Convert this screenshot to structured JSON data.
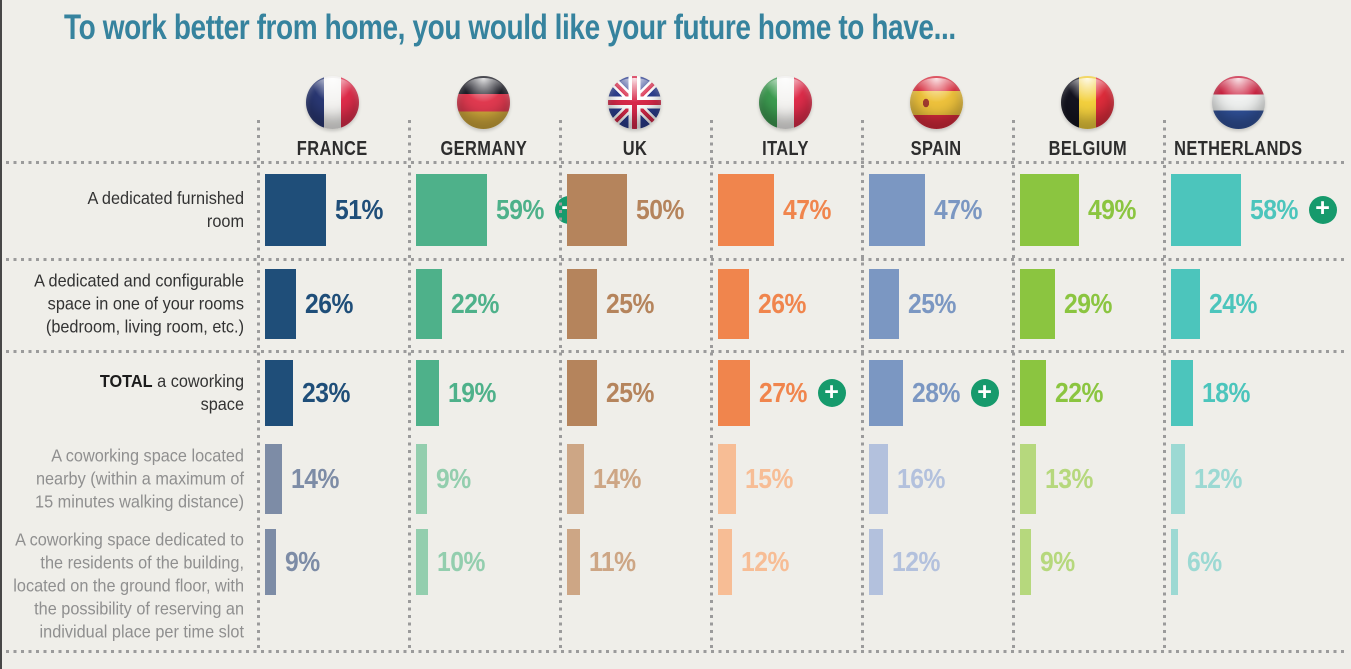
{
  "chart_data": {
    "type": "bar",
    "title": "To work better from home, you would like your future home to have...",
    "unit": "%",
    "value_format": "percent",
    "legend": "none",
    "grid": "dotted-separators",
    "categories": [
      "FRANCE",
      "GERMANY",
      "UK",
      "ITALY",
      "SPAIN",
      "BELGIUM",
      "NETHERLANDS"
    ],
    "series": [
      {
        "name": "A dedicated furnished room",
        "values": [
          51,
          59,
          50,
          47,
          47,
          49,
          58
        ],
        "significant_plus": [
          false,
          true,
          false,
          false,
          false,
          false,
          true
        ]
      },
      {
        "name": "A dedicated and configurable space in one of your rooms (bedroom, living room, etc.)",
        "values": [
          26,
          22,
          25,
          26,
          25,
          29,
          24
        ],
        "significant_plus": [
          false,
          false,
          false,
          false,
          false,
          false,
          false
        ]
      },
      {
        "name": "TOTAL a coworking space",
        "label_bold": "TOTAL",
        "label_rest": " a coworking space",
        "values": [
          23,
          19,
          25,
          27,
          28,
          22,
          18
        ],
        "significant_plus": [
          false,
          false,
          false,
          true,
          true,
          false,
          false
        ]
      },
      {
        "name": "A coworking space located nearby (within a maximum of 15 minutes walking distance)",
        "values": [
          14,
          9,
          14,
          15,
          16,
          13,
          12
        ],
        "significant_plus": [
          false,
          false,
          false,
          false,
          false,
          false,
          false
        ]
      },
      {
        "name": "A coworking space dedicated to the residents of the building, located on the ground floor, with the possibility of reserving an individual place per time slot",
        "values": [
          9,
          10,
          11,
          12,
          12,
          9,
          6
        ],
        "significant_plus": [
          false,
          false,
          false,
          false,
          false,
          false,
          false
        ]
      }
    ]
  },
  "icons": {
    "plus": "+",
    "flag_icons": [
      "france-flag-icon",
      "germany-flag-icon",
      "uk-flag-icon",
      "italy-flag-icon",
      "spain-flag-icon",
      "belgium-flag-icon",
      "netherlands-flag-icon"
    ]
  },
  "style": {
    "background": "#efeee9",
    "title_color": "#36839e",
    "plus_badge_color": "#169a6c",
    "separator_dot_color": "#9b9b9b",
    "label_dark": "#333333",
    "label_gray": "#8f8f8f",
    "flags": [
      "france",
      "germany",
      "uk",
      "italy",
      "spain",
      "belgium",
      "netherlands"
    ],
    "country_colors": [
      {
        "strong": "#1f4e79",
        "light": "#7d8ca6"
      },
      {
        "strong": "#4eb18a",
        "light": "#93ceae"
      },
      {
        "strong": "#b5845c",
        "light": "#cda685"
      },
      {
        "strong": "#f0854d",
        "light": "#f7bd95"
      },
      {
        "strong": "#7b97c2",
        "light": "#b3c1dd"
      },
      {
        "strong": "#8bc540",
        "light": "#b6d87d"
      },
      {
        "strong": "#4cc5bc",
        "light": "#9cd9d3"
      }
    ]
  }
}
